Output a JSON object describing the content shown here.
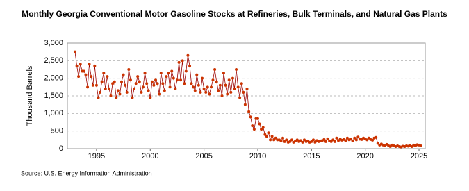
{
  "chart_data": {
    "type": "line",
    "title": "Monthly Georgia Conventional Motor Gasoline Stocks at Refineries, Bulk Terminals, and Natural Gas Plants",
    "y_label": "Thousand Barrels",
    "source": "Source: U.S. Energy Information Administration",
    "xlim": [
      1992.29,
      2025.58
    ],
    "xticks": [
      1995,
      2000,
      2005,
      2010,
      2015,
      2020,
      2025
    ],
    "ylim": [
      0,
      3000
    ],
    "yticks": [
      0,
      {
        "value": 500,
        "label": "500"
      },
      {
        "value": 1000,
        "label": "1,000"
      },
      {
        "value": 1500,
        "label": "1,500"
      },
      {
        "value": 2000,
        "label": "2,000"
      },
      {
        "value": 2500,
        "label": "2,500"
      },
      {
        "value": 3000,
        "label": "3,000"
      }
    ],
    "grid": true,
    "x": [
      1993,
      1993.17,
      1993.33,
      1993.5,
      1993.67,
      1993.83,
      1994,
      1994.17,
      1994.33,
      1994.5,
      1994.67,
      1994.83,
      1995,
      1995.17,
      1995.33,
      1995.5,
      1995.67,
      1995.83,
      1996,
      1996.17,
      1996.33,
      1996.5,
      1996.67,
      1996.83,
      1997,
      1997.17,
      1997.33,
      1997.5,
      1997.67,
      1997.83,
      1998,
      1998.17,
      1998.33,
      1998.5,
      1998.67,
      1998.83,
      1999,
      1999.17,
      1999.33,
      1999.5,
      1999.67,
      1999.83,
      2000,
      2000.17,
      2000.33,
      2000.5,
      2000.67,
      2000.83,
      2001,
      2001.17,
      2001.33,
      2001.5,
      2001.67,
      2001.83,
      2002,
      2002.17,
      2002.33,
      2002.5,
      2002.67,
      2002.83,
      2003,
      2003.17,
      2003.33,
      2003.5,
      2003.67,
      2003.83,
      2004,
      2004.17,
      2004.33,
      2004.5,
      2004.67,
      2004.83,
      2005,
      2005.17,
      2005.33,
      2005.5,
      2005.67,
      2005.83,
      2006,
      2006.17,
      2006.33,
      2006.5,
      2006.67,
      2006.83,
      2007,
      2007.17,
      2007.33,
      2007.5,
      2007.67,
      2007.83,
      2008,
      2008.17,
      2008.33,
      2008.5,
      2008.67,
      2008.83,
      2009,
      2009.17,
      2009.33,
      2009.5,
      2009.67,
      2009.83,
      2010,
      2010.17,
      2010.33,
      2010.5,
      2010.67,
      2010.83,
      2011,
      2011.17,
      2011.33,
      2011.5,
      2011.67,
      2011.83,
      2012,
      2012.17,
      2012.33,
      2012.5,
      2012.67,
      2012.83,
      2013,
      2013.17,
      2013.33,
      2013.5,
      2013.67,
      2013.83,
      2014,
      2014.17,
      2014.33,
      2014.5,
      2014.67,
      2014.83,
      2015,
      2015.17,
      2015.33,
      2015.5,
      2015.67,
      2015.83,
      2016,
      2016.17,
      2016.33,
      2016.5,
      2016.67,
      2016.83,
      2017,
      2017.17,
      2017.33,
      2017.5,
      2017.67,
      2017.83,
      2018,
      2018.17,
      2018.33,
      2018.5,
      2018.67,
      2018.83,
      2019,
      2019.17,
      2019.33,
      2019.5,
      2019.67,
      2019.83,
      2020,
      2020.17,
      2020.33,
      2020.5,
      2020.67,
      2020.83,
      2021,
      2021.17,
      2021.33,
      2021.5,
      2021.67,
      2021.83,
      2022,
      2022.17,
      2022.33,
      2022.5,
      2022.67,
      2022.83,
      2023,
      2023.17,
      2023.33,
      2023.5,
      2023.67,
      2023.83,
      2024,
      2024.17,
      2024.33,
      2024.5,
      2024.67,
      2024.83,
      2025,
      2025.17
    ],
    "series": [
      {
        "color": "#cc3300",
        "line_color": "#990000",
        "values": [
          2750,
          2350,
          2050,
          2400,
          2200,
          2200,
          2100,
          1750,
          2400,
          2050,
          1800,
          2350,
          1800,
          1450,
          1600,
          1900,
          2150,
          1700,
          2050,
          1700,
          1500,
          1850,
          1900,
          1450,
          1650,
          1550,
          1900,
          2100,
          1800,
          1600,
          2250,
          1950,
          1450,
          1700,
          1850,
          2050,
          1900,
          1600,
          1750,
          2150,
          1850,
          1650,
          1450,
          1900,
          1800,
          1950,
          1850,
          1550,
          2150,
          1850,
          1650,
          2050,
          2150,
          1750,
          2200,
          2000,
          1700,
          1950,
          2450,
          1950,
          2500,
          1850,
          2200,
          2650,
          2350,
          1850,
          1750,
          1650,
          2100,
          1800,
          1600,
          2000,
          1700,
          1600,
          1750,
          1550,
          1750,
          1950,
          2250,
          1900,
          1650,
          1800,
          1500,
          2150,
          1800,
          1550,
          1950,
          1600,
          2000,
          1700,
          2250,
          1750,
          1450,
          1850,
          1600,
          1250,
          1700,
          1050,
          900,
          650,
          550,
          850,
          850,
          700,
          550,
          600,
          400,
          350,
          450,
          250,
          350,
          250,
          300,
          250,
          250,
          220,
          300,
          200,
          250,
          180,
          200,
          250,
          180,
          220,
          250,
          200,
          230,
          180,
          250,
          200,
          220,
          180,
          200,
          250,
          180,
          230,
          200,
          220,
          230,
          260,
          200,
          280,
          220,
          200,
          250,
          200,
          300,
          230,
          270,
          240,
          260,
          230,
          300,
          250,
          270,
          220,
          300,
          250,
          330,
          270,
          260,
          300,
          280,
          250,
          300,
          260,
          240,
          300,
          320,
          150,
          100,
          130,
          100,
          80,
          120,
          80,
          60,
          100,
          80,
          60,
          80,
          60,
          50,
          70,
          60,
          80,
          70,
          90,
          60,
          100,
          80,
          110,
          100,
          80
        ]
      }
    ]
  }
}
